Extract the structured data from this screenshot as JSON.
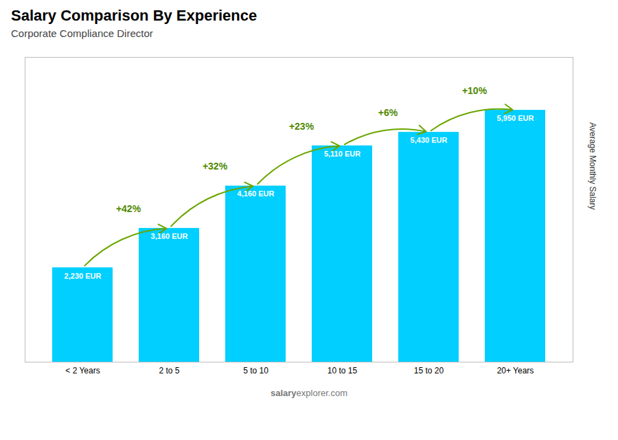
{
  "chart_data": {
    "type": "bar",
    "title": "Salary Comparison By Experience",
    "subtitle": "Corporate Compliance Director",
    "categories": [
      "< 2 Years",
      "2 to 5",
      "5 to 10",
      "10 to 15",
      "15 to 20",
      "20+ Years"
    ],
    "values": [
      2230,
      3160,
      4160,
      5110,
      5430,
      5950
    ],
    "value_labels": [
      "2,230 EUR",
      "3,160 EUR",
      "4,160 EUR",
      "5,110 EUR",
      "5,430 EUR",
      "5,950 EUR"
    ],
    "data_labels": true,
    "color": "#00cfff",
    "ylabel": "Average Monthly Salary",
    "ylim": [
      0,
      7200
    ],
    "tick_labels": "x",
    "grid": false,
    "annotations": [
      {
        "text": "+42%",
        "from": "< 2 Years",
        "to": "2 to 5"
      },
      {
        "text": "+32%",
        "from": "2 to 5",
        "to": "5 to 10"
      },
      {
        "text": "+23%",
        "from": "5 to 10",
        "to": "10 to 15"
      },
      {
        "text": "+6%",
        "from": "10 to 15",
        "to": "15 to 20"
      },
      {
        "text": "+10%",
        "from": "15 to 20",
        "to": "20+ Years"
      }
    ],
    "watermark": [
      "salary",
      "explorer.com"
    ]
  }
}
